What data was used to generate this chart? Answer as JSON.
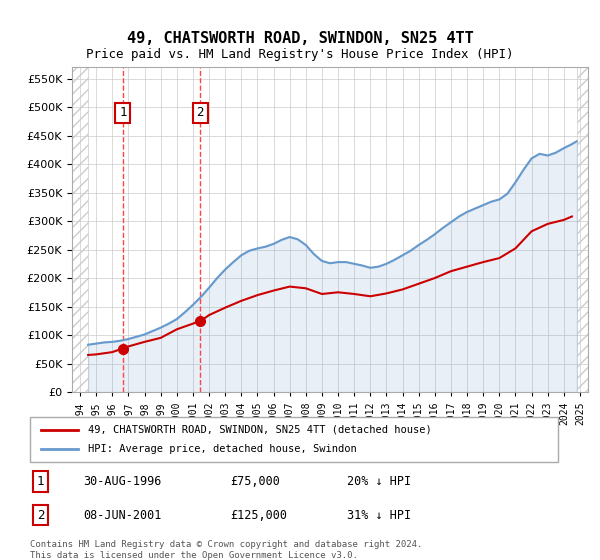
{
  "title": "49, CHATSWORTH ROAD, SWINDON, SN25 4TT",
  "subtitle": "Price paid vs. HM Land Registry's House Price Index (HPI)",
  "legend_line1": "49, CHATSWORTH ROAD, SWINDON, SN25 4TT (detached house)",
  "legend_line2": "HPI: Average price, detached house, Swindon",
  "footnote": "Contains HM Land Registry data © Crown copyright and database right 2024.\nThis data is licensed under the Open Government Licence v3.0.",
  "sale1_label": "1",
  "sale1_date": "30-AUG-1996",
  "sale1_price": "£75,000",
  "sale1_hpi": "20% ↓ HPI",
  "sale2_label": "2",
  "sale2_date": "08-JUN-2001",
  "sale2_price": "£125,000",
  "sale2_hpi": "31% ↓ HPI",
  "sale1_year": 1996.66,
  "sale1_value": 75000,
  "sale2_year": 2001.44,
  "sale2_value": 125000,
  "hpi_color": "#6699cc",
  "property_color": "#cc0000",
  "hatch_color": "#cccccc",
  "grid_color": "#cccccc",
  "dashed_color": "#ff4444",
  "ylim_min": 0,
  "ylim_max": 570000,
  "xlim_min": 1993.5,
  "xlim_max": 2025.5,
  "data_xmin": 1994.5,
  "data_xmax": 2024.8,
  "hpi_years": [
    1994.5,
    1995,
    1995.5,
    1996,
    1996.5,
    1997,
    1997.5,
    1998,
    1998.5,
    1999,
    1999.5,
    2000,
    2000.5,
    2001,
    2001.5,
    2002,
    2002.5,
    2003,
    2003.5,
    2004,
    2004.5,
    2005,
    2005.5,
    2006,
    2006.5,
    2007,
    2007.5,
    2008,
    2008.5,
    2009,
    2009.5,
    2010,
    2010.5,
    2011,
    2011.5,
    2012,
    2012.5,
    2013,
    2013.5,
    2014,
    2014.5,
    2015,
    2015.5,
    2016,
    2016.5,
    2017,
    2017.5,
    2018,
    2018.5,
    2019,
    2019.5,
    2020,
    2020.5,
    2021,
    2021.5,
    2022,
    2022.5,
    2023,
    2023.5,
    2024,
    2024.5,
    2024.8
  ],
  "hpi_values": [
    83000,
    85000,
    87000,
    88000,
    90000,
    93000,
    97000,
    101000,
    107000,
    113000,
    120000,
    128000,
    140000,
    153000,
    167000,
    183000,
    200000,
    215000,
    228000,
    240000,
    248000,
    252000,
    255000,
    260000,
    267000,
    272000,
    268000,
    258000,
    242000,
    230000,
    226000,
    228000,
    228000,
    225000,
    222000,
    218000,
    220000,
    225000,
    232000,
    240000,
    248000,
    258000,
    267000,
    277000,
    288000,
    298000,
    308000,
    316000,
    322000,
    328000,
    334000,
    338000,
    348000,
    368000,
    390000,
    410000,
    418000,
    415000,
    420000,
    428000,
    435000,
    440000
  ],
  "prop_years": [
    1994.5,
    1995,
    1995.5,
    1996,
    1996.5,
    1997,
    1998,
    1999,
    2000,
    2001,
    2001.5,
    2002,
    2003,
    2004,
    2005,
    2006,
    2007,
    2008,
    2009,
    2010,
    2011,
    2012,
    2013,
    2014,
    2015,
    2016,
    2017,
    2018,
    2019,
    2020,
    2021,
    2022,
    2023,
    2024,
    2024.5
  ],
  "prop_values": [
    65000,
    66000,
    68000,
    70000,
    75000,
    80000,
    88000,
    95000,
    110000,
    120000,
    125000,
    135000,
    148000,
    160000,
    170000,
    178000,
    185000,
    182000,
    172000,
    175000,
    172000,
    168000,
    173000,
    180000,
    190000,
    200000,
    212000,
    220000,
    228000,
    235000,
    252000,
    282000,
    295000,
    302000,
    308000
  ]
}
